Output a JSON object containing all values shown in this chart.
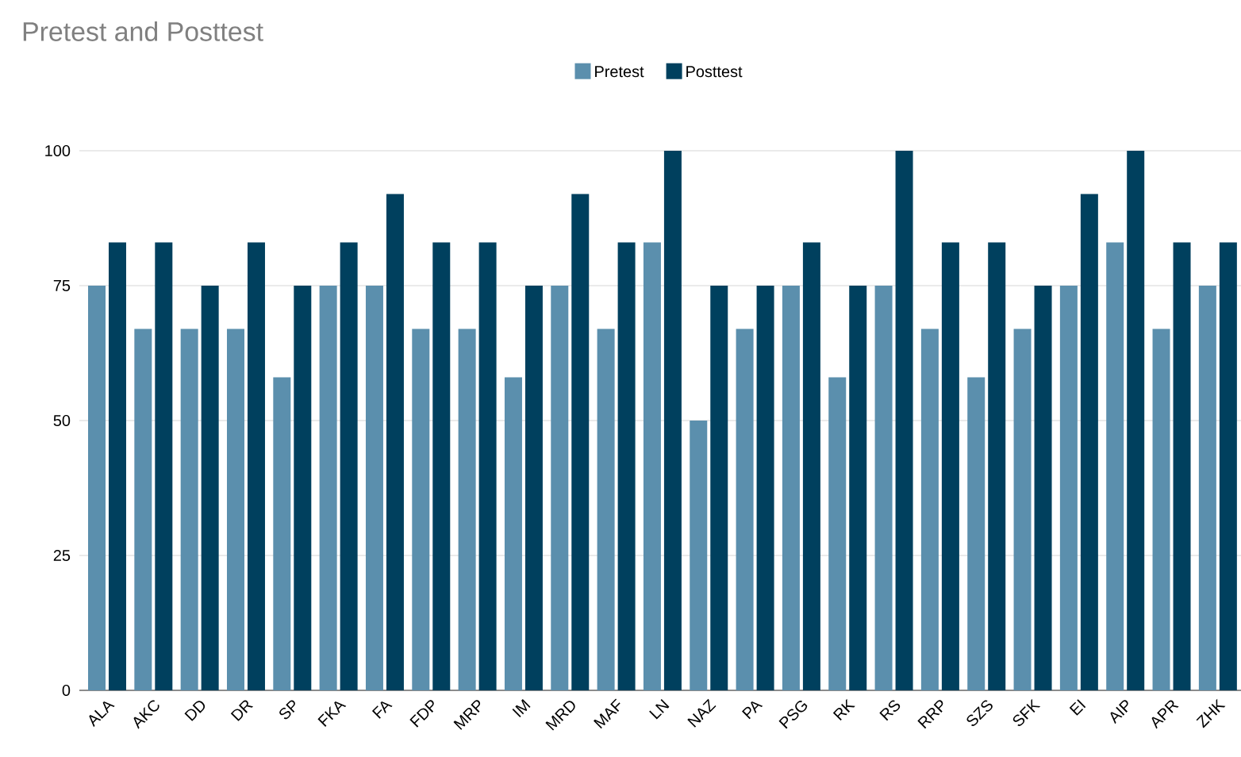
{
  "chart_data": {
    "type": "bar",
    "title": "Pretest and Posttest",
    "categories": [
      "ALA",
      "AKC",
      "DD",
      "DR",
      "SP",
      "FKA",
      "FA",
      "FDP",
      "MRP",
      "IM",
      "MRD",
      "MAF",
      "LN",
      "NAZ",
      "PA",
      "PSG",
      "RK",
      "RS",
      "RRP",
      "SZS",
      "SFK",
      "EI",
      "AIP",
      "APR",
      "ZHK"
    ],
    "series": [
      {
        "name": "Pretest",
        "color": "#5b8fad",
        "values": [
          75,
          67,
          67,
          67,
          58,
          75,
          75,
          67,
          67,
          58,
          75,
          67,
          83,
          50,
          67,
          75,
          58,
          75,
          67,
          58,
          67,
          75,
          83,
          67,
          75
        ]
      },
      {
        "name": "Posttest",
        "color": "#00405e",
        "values": [
          83,
          83,
          75,
          83,
          75,
          83,
          92,
          83,
          83,
          75,
          92,
          83,
          100,
          75,
          75,
          83,
          75,
          100,
          83,
          83,
          75,
          92,
          100,
          83,
          83
        ]
      }
    ],
    "ylim": [
      0,
      100
    ],
    "yticks": [
      0,
      25,
      50,
      75,
      100
    ],
    "grid": "y",
    "legend": "top"
  }
}
